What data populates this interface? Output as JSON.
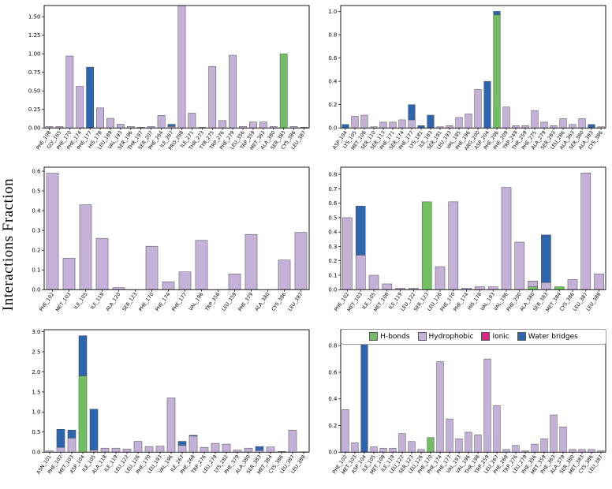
{
  "figure": {
    "ylabel": "Interactions Fraction"
  },
  "colors": {
    "hbonds": "#72bf63",
    "hydrophobic": "#c3b1d8",
    "ionic": "#e0218a",
    "water": "#2d65af",
    "bar_edge": "#4d4d4d",
    "axis": "#000000"
  },
  "legend": {
    "entries": [
      {
        "key": "hbonds",
        "label": "H-bonds"
      },
      {
        "key": "hydrophobic",
        "label": "Hydrophobic"
      },
      {
        "key": "ionic",
        "label": "Ionic"
      },
      {
        "key": "water",
        "label": "Water bridges"
      }
    ]
  },
  "chart_data": [
    {
      "type": "bar",
      "stacked": true,
      "title": "",
      "xlabel": "",
      "ylabel": "Interactions Fraction",
      "ylim": 1.65,
      "ytick_values": [
        0,
        0.25,
        0.5,
        0.75,
        1.0,
        1.25,
        1.5
      ],
      "ytick_labels": [
        "0.00",
        "0.25",
        "0.50",
        "0.75",
        "1.00",
        "1.25",
        "1.50"
      ],
      "categories": [
        "PHE_108",
        "GLY_165",
        "PHE_170",
        "PHE_174",
        "PHE_177",
        "HIS_178",
        "LEU_189",
        "VAL_193",
        "SER_196",
        "THR_197",
        "SER_207",
        "PHE_264",
        "ILE_267",
        "PRO_268",
        "ILE_271",
        "THR_273",
        "TYR_275",
        "TRP_276",
        "PHE_279",
        "LEU_356",
        "TRP_359",
        "MET_363",
        "ALA_380",
        "SER_383",
        "CYS_386",
        "LEU_387"
      ],
      "series": [
        {
          "name": "hbonds",
          "values": [
            0,
            0,
            0,
            0,
            0,
            0,
            0,
            0,
            0,
            0,
            0,
            0,
            0,
            0,
            0,
            0,
            0,
            0,
            0,
            0,
            0,
            0,
            0,
            1.0,
            0,
            0
          ]
        },
        {
          "name": "hydrophobic",
          "values": [
            0.02,
            0.02,
            0.97,
            0.56,
            0,
            0.27,
            0.13,
            0.05,
            0.02,
            0.01,
            0.02,
            0.17,
            0.02,
            1.65,
            0.2,
            0.01,
            0.83,
            0.1,
            0.98,
            0.02,
            0.08,
            0.08,
            0.02,
            0,
            0.02,
            0.01
          ]
        },
        {
          "name": "water",
          "values": [
            0,
            0,
            0,
            0,
            0.82,
            0,
            0,
            0,
            0,
            0,
            0,
            0,
            0.03,
            0,
            0,
            0,
            0,
            0,
            0,
            0,
            0,
            0,
            0,
            0,
            0,
            0
          ]
        }
      ]
    },
    {
      "type": "bar",
      "stacked": true,
      "title": "",
      "xlabel": "",
      "ylabel": "Interactions Fraction",
      "ylim": 1.05,
      "ytick_values": [
        0,
        0.2,
        0.4,
        0.6,
        0.8,
        1.0
      ],
      "ytick_labels": [
        "0.0",
        "0.2",
        "0.4",
        "0.6",
        "0.8",
        "1.0"
      ],
      "categories": [
        "ASP_104",
        "LYS_105",
        "MET_108",
        "SER_110",
        "SER_113",
        "PHE_171",
        "SER_174",
        "PHE_177",
        "LYS_181",
        "ILE_183",
        "SER_191",
        "LEU_193",
        "VAL_195",
        "PHE_196",
        "ARG_200",
        "ASP_204",
        "PHE_206",
        "PHE_209",
        "TRP_249",
        "THR_259",
        "PHE_275",
        "ALA_279",
        "SER_283",
        "LEU_286",
        "ALA_363",
        "SER_380",
        "ALA_383",
        "CYS_386"
      ],
      "series": [
        {
          "name": "hbonds",
          "values": [
            0,
            0,
            0,
            0,
            0,
            0,
            0,
            0,
            0,
            0,
            0,
            0,
            0,
            0,
            0,
            0,
            0.97,
            0,
            0,
            0,
            0,
            0,
            0,
            0,
            0,
            0,
            0,
            0
          ]
        },
        {
          "name": "hydrophobic",
          "values": [
            0,
            0.1,
            0.11,
            0.01,
            0.05,
            0.05,
            0.07,
            0.07,
            0,
            0,
            0.01,
            0.02,
            0.09,
            0.12,
            0.33,
            0,
            0,
            0.18,
            0.02,
            0.02,
            0.15,
            0.05,
            0.02,
            0.08,
            0.03,
            0.08,
            0,
            0.01
          ]
        },
        {
          "name": "water",
          "values": [
            0.03,
            0,
            0,
            0,
            0,
            0,
            0,
            0.13,
            0.02,
            0.11,
            0,
            0,
            0,
            0,
            0,
            0.4,
            0.03,
            0,
            0,
            0,
            0,
            0,
            0,
            0,
            0,
            0,
            0.03,
            0
          ]
        }
      ]
    },
    {
      "type": "bar",
      "stacked": true,
      "title": "",
      "xlabel": "",
      "ylabel": "Interactions Fraction",
      "ylim": 0.62,
      "ytick_values": [
        0,
        0.1,
        0.2,
        0.3,
        0.4,
        0.5,
        0.6
      ],
      "ytick_labels": [
        "0.0",
        "0.1",
        "0.2",
        "0.3",
        "0.4",
        "0.5",
        "0.6"
      ],
      "categories": [
        "PHE_102",
        "MET_103",
        "ILE_105",
        "ILE_119",
        "ALA_120",
        "SER_123",
        "PHE_170",
        "PHE_174",
        "PHE_177",
        "VAL_196",
        "TRP_356",
        "LEU_359",
        "PHE_379",
        "ALA_380",
        "CYS_386",
        "LEU_387"
      ],
      "series": [
        {
          "name": "hydrophobic",
          "values": [
            0.59,
            0.16,
            0.43,
            0.26,
            0.01,
            0,
            0.22,
            0.04,
            0.09,
            0.25,
            0,
            0.08,
            0.28,
            0,
            0.15,
            0.29
          ]
        }
      ]
    },
    {
      "type": "bar",
      "stacked": true,
      "title": "",
      "xlabel": "",
      "ylabel": "Interactions Fraction",
      "ylim": 0.85,
      "ytick_values": [
        0,
        0.1,
        0.2,
        0.3,
        0.4,
        0.5,
        0.6,
        0.7,
        0.8
      ],
      "ytick_labels": [
        "0.0",
        "0.1",
        "0.2",
        "0.3",
        "0.4",
        "0.5",
        "0.6",
        "0.7",
        "0.8"
      ],
      "categories": [
        "PHE_102",
        "MET_103",
        "ILE_105",
        "MET_108",
        "ILE_119",
        "LEU_122",
        "SER_123",
        "LEU_126",
        "PHE_170",
        "PHE_174",
        "HIS_178",
        "VAL_193",
        "VAL_196",
        "PHE_200",
        "ALA_380",
        "SER_383",
        "MET_384",
        "CYS_386",
        "LEU_387",
        "LEU_388"
      ],
      "series": [
        {
          "name": "hbonds",
          "values": [
            0,
            0,
            0,
            0,
            0,
            0,
            0.61,
            0,
            0,
            0,
            0,
            0,
            0,
            0,
            0.02,
            0,
            0.02,
            0,
            0,
            0
          ]
        },
        {
          "name": "hydrophobic",
          "values": [
            0.5,
            0.24,
            0.1,
            0.04,
            0.01,
            0.01,
            0,
            0.16,
            0.61,
            0.01,
            0.02,
            0.02,
            0.71,
            0.33,
            0.04,
            0.05,
            0,
            0.07,
            0.81,
            0.11
          ]
        },
        {
          "name": "water",
          "values": [
            0,
            0.34,
            0,
            0,
            0,
            0,
            0,
            0,
            0,
            0,
            0,
            0,
            0,
            0,
            0,
            0.33,
            0,
            0,
            0,
            0
          ]
        }
      ]
    },
    {
      "type": "bar",
      "stacked": true,
      "title": "",
      "xlabel": "",
      "ylabel": "Interactions Fraction",
      "ylim": 3.05,
      "ytick_values": [
        0,
        0.5,
        1.0,
        1.5,
        2.0,
        2.5,
        3.0
      ],
      "ytick_labels": [
        "0.0",
        "0.5",
        "1.0",
        "1.5",
        "2.0",
        "2.5",
        "3.0"
      ],
      "categories": [
        "ASN_101",
        "PHE_102",
        "MET_103",
        "ASP_104",
        "ILE_105",
        "ALA_118",
        "ILE_119",
        "LEU_122",
        "LEU_126",
        "PHE_170",
        "LEU_193",
        "VAL_196",
        "ILE_267",
        "PHE_268",
        "TRP_276",
        "LEU_279",
        "LYS_282",
        "PHE_379",
        "ALA_380",
        "SER_383",
        "MET_384",
        "CYS_386",
        "LEU_387",
        "LEU_388"
      ],
      "series": [
        {
          "name": "hbonds",
          "values": [
            0,
            0,
            0,
            1.9,
            0,
            0,
            0,
            0,
            0,
            0,
            0,
            0,
            0,
            0,
            0,
            0,
            0,
            0,
            0,
            0,
            0,
            0,
            0,
            0
          ]
        },
        {
          "name": "hydrophobic",
          "values": [
            0.03,
            0.12,
            0.35,
            0,
            0.05,
            0.1,
            0.1,
            0.08,
            0.27,
            0.14,
            0.15,
            1.35,
            0.17,
            0.4,
            0.12,
            0.22,
            0.2,
            0.05,
            0.1,
            0.04,
            0.13,
            0.02,
            0.55,
            0.01
          ]
        },
        {
          "name": "water",
          "values": [
            0,
            0.45,
            0.2,
            1.0,
            1.02,
            0,
            0,
            0,
            0,
            0,
            0,
            0,
            0.1,
            0.02,
            0,
            0,
            0,
            0,
            0,
            0.1,
            0,
            0,
            0,
            0
          ]
        }
      ]
    },
    {
      "type": "bar",
      "stacked": true,
      "title": "",
      "xlabel": "",
      "ylabel": "Interactions Fraction",
      "ylim": 0.92,
      "ytick_values": [
        0,
        0.2,
        0.4,
        0.6,
        0.8
      ],
      "ytick_labels": [
        "0.0",
        "0.2",
        "0.4",
        "0.6",
        "0.8"
      ],
      "categories": [
        "PHE_102",
        "MET_103",
        "ASP_104",
        "ILE_105",
        "MET_108",
        "ILE_119",
        "LEU_122",
        "SER_123",
        "LEU_126",
        "PHE_170",
        "PHE_174",
        "PHE_177",
        "VAL_193",
        "VAL_196",
        "THR_198",
        "TRP_259",
        "LEU_267",
        "PHE_268",
        "TRP_276",
        "LEU_279",
        "PHE_356",
        "MET_359",
        "PHE_363",
        "ALA_379",
        "SER_380",
        "MET_383",
        "CYS_386",
        "LEU_387"
      ],
      "series": [
        {
          "name": "hbonds",
          "values": [
            0,
            0,
            0,
            0,
            0,
            0,
            0,
            0,
            0,
            0.11,
            0,
            0,
            0,
            0,
            0,
            0,
            0,
            0,
            0,
            0,
            0,
            0,
            0,
            0,
            0,
            0,
            0,
            0
          ]
        },
        {
          "name": "hydrophobic",
          "values": [
            0.32,
            0.07,
            0,
            0.04,
            0.03,
            0.03,
            0.14,
            0.08,
            0.02,
            0,
            0.68,
            0.25,
            0.1,
            0.15,
            0.13,
            0.7,
            0.35,
            0.02,
            0.05,
            0.01,
            0.06,
            0.1,
            0.28,
            0.19,
            0.02,
            0.02,
            0.02,
            0.01
          ]
        },
        {
          "name": "water",
          "values": [
            0,
            0,
            0.88,
            0,
            0,
            0,
            0,
            0,
            0,
            0,
            0,
            0,
            0,
            0,
            0,
            0,
            0,
            0,
            0,
            0,
            0,
            0,
            0,
            0,
            0,
            0,
            0,
            0
          ]
        }
      ]
    }
  ]
}
